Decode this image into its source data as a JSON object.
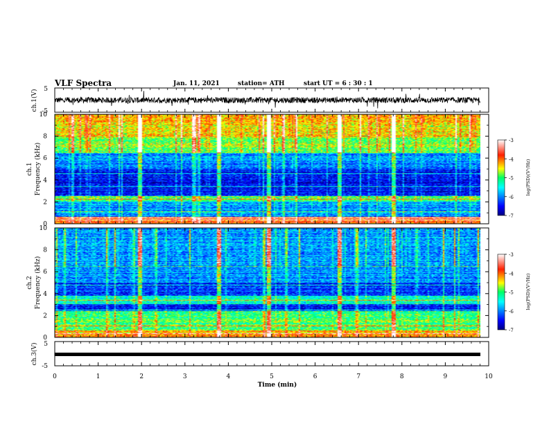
{
  "header": {
    "title": "VLF Spectra",
    "date": "Jan. 11, 2021",
    "station": "station= ATH",
    "start": "start  UT =   6 : 30 : 1"
  },
  "chart_data": [
    {
      "type": "line",
      "ylabel": "ch.1(V)",
      "ylim": [
        -5,
        5
      ],
      "yticks": [
        "5",
        "-5"
      ],
      "x_range": [
        0,
        10
      ],
      "description_values": {
        "mean_voltage": 0,
        "amplitude": 1.2
      }
    },
    {
      "type": "heatmap",
      "ylabel_line1": "ch.1",
      "ylabel_line2": "Frequency  (kHz)",
      "ylim": [
        0,
        10
      ],
      "yticks": [
        "0",
        "2",
        "4",
        "6",
        "8",
        "10"
      ],
      "colorbar": {
        "label": "log(PSD)(V²/Hz)",
        "ticks": [
          "-3",
          "-4",
          "-5",
          "-6",
          "-7"
        ],
        "range": [
          -7,
          -3
        ]
      },
      "band_profile": [
        {
          "f0": 0,
          "f1": 0.6,
          "level": -4.0
        },
        {
          "f0": 0.6,
          "f1": 2.0,
          "level": -5.9
        },
        {
          "f0": 2.0,
          "f1": 2.5,
          "level": -5.0
        },
        {
          "f0": 2.5,
          "f1": 5.0,
          "level": -6.5
        },
        {
          "f0": 5.0,
          "f1": 6.5,
          "level": -6.0
        },
        {
          "f0": 6.5,
          "f1": 8.0,
          "level": -4.8
        },
        {
          "f0": 8.0,
          "f1": 10,
          "level": -4.4
        }
      ],
      "strong_lines_khz": [
        0.3,
        0.5,
        1.1,
        2.2,
        3.4,
        4.6,
        6.5
      ],
      "event_times_min": [
        1.95,
        3.78,
        4.92,
        6.55,
        7.8
      ]
    },
    {
      "type": "heatmap",
      "ylabel_line1": "ch.2",
      "ylabel_line2": "Frequency  (kHz)",
      "ylim": [
        0,
        10
      ],
      "yticks": [
        "0",
        "2",
        "4",
        "6",
        "8",
        "10"
      ],
      "colorbar": {
        "label": "log(PSD)(V²/Hz)",
        "ticks": [
          "-3",
          "-4",
          "-5",
          "-6",
          "-7"
        ],
        "range": [
          -7,
          -3
        ]
      },
      "band_profile": [
        {
          "f0": 0,
          "f1": 0.6,
          "level": -4.2
        },
        {
          "f0": 0.6,
          "f1": 2.4,
          "level": -5.0
        },
        {
          "f0": 2.4,
          "f1": 3.0,
          "level": -6.5
        },
        {
          "f0": 3.0,
          "f1": 3.8,
          "level": -5.3
        },
        {
          "f0": 3.8,
          "f1": 5.0,
          "level": -6.3
        },
        {
          "f0": 5.0,
          "f1": 6.5,
          "level": -6.0
        },
        {
          "f0": 6.5,
          "f1": 10,
          "level": -5.9
        }
      ],
      "strong_lines_khz": [
        0.3,
        1.0,
        2.5,
        3.4,
        4.8,
        6.5
      ],
      "event_times_min": [
        1.95,
        3.78,
        4.92,
        6.55,
        7.8
      ]
    },
    {
      "type": "line",
      "ylabel": "ch.3(V)",
      "ylim": [
        -5,
        5
      ],
      "yticks": [
        "5",
        "-5"
      ],
      "x_range": [
        0,
        10
      ],
      "xlabel": "Time  (min)",
      "xticks": [
        "0",
        "1",
        "2",
        "3",
        "4",
        "5",
        "6",
        "7",
        "8",
        "9",
        "10"
      ],
      "description_values": {
        "mean_voltage": 0,
        "amplitude": 0
      }
    }
  ]
}
